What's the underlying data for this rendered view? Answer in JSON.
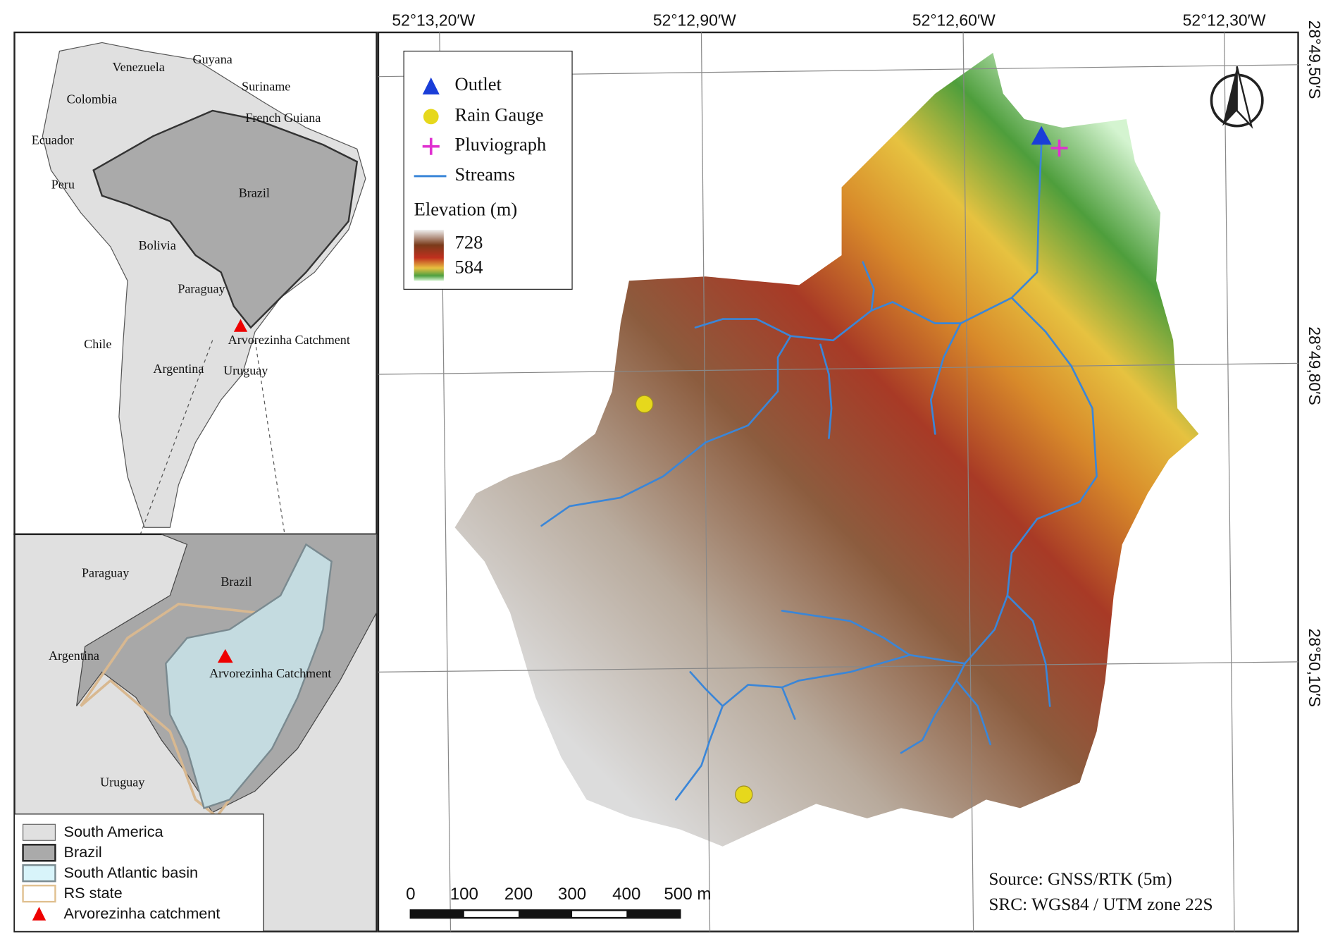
{
  "map": {
    "lon_labels": [
      "52°13,20′W",
      "52°12,90′W",
      "52°12,60′W",
      "52°12,30′W"
    ],
    "lat_labels": [
      "28°49,50′S",
      "28°49,80′S",
      "28°50,10′S"
    ]
  },
  "legend": {
    "items": [
      "Outlet",
      "Rain Gauge",
      "Pluviograph",
      "Streams"
    ],
    "elevation_title": "Elevation (m)",
    "elevation_max": "728",
    "elevation_min": "584"
  },
  "inset_top": {
    "labels": [
      "Venezuela",
      "Guyana",
      "Suriname",
      "Colombia",
      "French Guiana",
      "Ecuador",
      "Peru",
      "Brazil",
      "Bolivia",
      "Paraguay",
      "Chile",
      "Arvorezinha Catchment",
      "Argentina",
      "Uruguay"
    ]
  },
  "inset_bottom": {
    "labels": [
      "Paraguay",
      "Brazil",
      "Argentina",
      "Arvorezinha Catchment",
      "Uruguay"
    ]
  },
  "inset_legend": {
    "items": [
      "South America",
      "Brazil",
      "South Atlantic basin",
      "RS state",
      "Arvorezinha catchment"
    ]
  },
  "scale_bar": {
    "labels": [
      "0",
      "100",
      "200",
      "300",
      "400",
      "500 m"
    ]
  },
  "source": [
    "Source: GNSS/RTK (5m)",
    "SRC: WGS84 / UTM zone 22S"
  ]
}
